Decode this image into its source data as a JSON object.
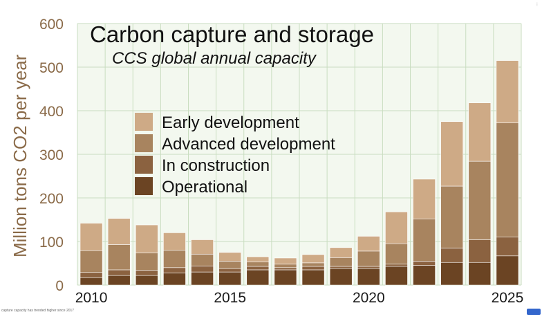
{
  "caption": "capture capacity has trended higher since 2017",
  "colors": {
    "plot_bg": "#f3f8ef",
    "grid": "#c9ddc0",
    "operational": "#6b4423",
    "in_construction": "#8b6240",
    "advanced_development": "#a8845f",
    "early_development": "#ceaa86"
  },
  "chart_data": {
    "type": "bar",
    "stacked": true,
    "title": "Carbon capture and storage",
    "subtitle": "CCS global annual capacity",
    "ylabel": "Million tons CO2 per year",
    "xlabel": "",
    "ylim": [
      0,
      600
    ],
    "yticks": [
      "0",
      "100",
      "200",
      "300",
      "400",
      "500",
      "600"
    ],
    "xticks": [
      "2010",
      "2015",
      "2020",
      "2025"
    ],
    "categories": [
      2010,
      2011,
      2012,
      2013,
      2014,
      2015,
      2016,
      2017,
      2018,
      2019,
      2020,
      2021,
      2022,
      2023,
      2024,
      2025
    ],
    "legend_position": "center-left",
    "grid": true,
    "series": [
      {
        "name": "Operational",
        "key": "operational",
        "values": [
          17,
          22,
          22,
          28,
          30,
          30,
          35,
          35,
          35,
          38,
          38,
          43,
          45,
          52,
          52,
          67
        ]
      },
      {
        "name": "In construction",
        "key": "in_construction",
        "values": [
          12,
          13,
          12,
          12,
          14,
          8,
          8,
          5,
          8,
          5,
          5,
          5,
          10,
          33,
          52,
          43
        ]
      },
      {
        "name": "Advanced development",
        "key": "advanced_development",
        "values": [
          50,
          58,
          40,
          40,
          27,
          17,
          10,
          8,
          8,
          20,
          35,
          47,
          97,
          142,
          180,
          262
        ]
      },
      {
        "name": "Early development",
        "key": "early_development",
        "values": [
          63,
          60,
          64,
          40,
          33,
          20,
          12,
          14,
          19,
          23,
          34,
          73,
          91,
          148,
          134,
          143
        ]
      }
    ],
    "legend": [
      "Early development",
      "Advanced development",
      "In construction",
      "Operational"
    ]
  }
}
